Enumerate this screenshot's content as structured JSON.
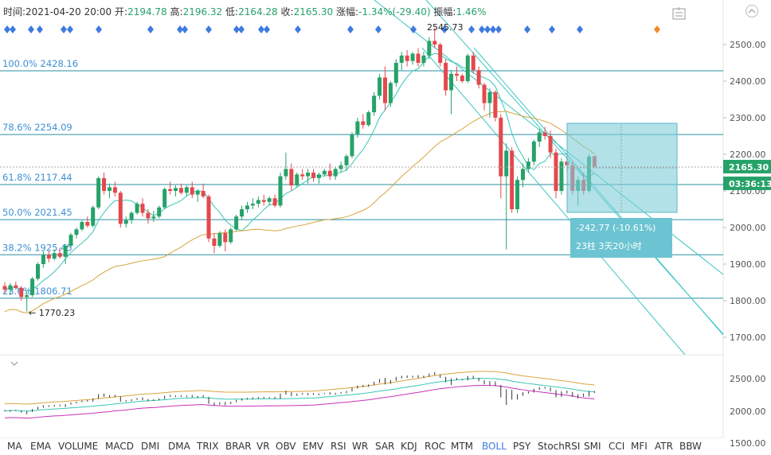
{
  "info": {
    "time_label": "时间:",
    "time_value": "2021-04-20 20:00",
    "open_label": "开:",
    "open_value": "2194.78",
    "high_label": "高:",
    "high_value": "2196.32",
    "low_label": "低:",
    "low_value": "2164.28",
    "close_label": "收:",
    "close_value": "2165.30",
    "change_label": "涨幅:",
    "change_value": "-1.34%(-29.40)",
    "amp_label": "振幅:",
    "amp_value": "1.46%"
  },
  "tools": [
    "chart-settings-icon",
    "collapse-up-icon"
  ],
  "fib_levels": [
    {
      "label": "100.0% 2428.16",
      "price": 2428.16
    },
    {
      "label": "78.6% 2254.09",
      "price": 2254.09
    },
    {
      "label": "61.8% 2117.44",
      "price": 2117.44
    },
    {
      "label": "50.0% 2021.45",
      "price": 2021.45
    },
    {
      "label": "38.2% 1925.45",
      "price": 1925.45
    },
    {
      "label": "23.6% 1806.71",
      "price": 1806.71
    }
  ],
  "annotations": {
    "high_marker": "2545.73",
    "low_marker": "← 1770.23"
  },
  "measure_box": {
    "line1": "-242.77 (-10.61%)",
    "line2": "23柱  3天20小时"
  },
  "price_axis": {
    "ticks": [
      "2500.00",
      "2400.00",
      "2300.00",
      "2200.00",
      "2100.00",
      "2000.00",
      "1900.00",
      "1800.00",
      "1700.00"
    ],
    "current_price": "2165.30",
    "countdown": "03:36:13"
  },
  "sub_axis": {
    "ticks": [
      "2500.00",
      "2000.00",
      "1500.00"
    ]
  },
  "indicator_tabs": [
    "MA",
    "EMA",
    "VOLUME",
    "MACD",
    "DMI",
    "DMA",
    "TRIX",
    "BRAR",
    "VR",
    "OBV",
    "EMV",
    "RSI",
    "WR",
    "SAR",
    "KDJ",
    "ROC",
    "MTM",
    "BOLL",
    "PSY",
    "StochRSI",
    "SMI",
    "CCI",
    "MFI",
    "ATR",
    "BBW"
  ],
  "active_tab": "BOLL",
  "colors": {
    "up": "#26a269",
    "down": "#e5484d",
    "fib_line": "#2a8fa3",
    "channel": "#3cc7c4",
    "ma_short": "#36c7b5",
    "ma_long": "#d8a43c",
    "boll_lower": "#c832b8",
    "measure_fill": "#7fcdd9",
    "tab_active": "#3d7be0",
    "marker_blue": "#3d7be0",
    "marker_orange": "#f28c28"
  },
  "chart_data": {
    "type": "candlestick",
    "symbol_interval": "4h",
    "y_axis_range": [
      1650,
      2560
    ],
    "sub_axis_range": [
      1500,
      2700
    ],
    "candles": [
      {
        "o": 1840,
        "h": 1850,
        "l": 1820,
        "c": 1830
      },
      {
        "o": 1830,
        "h": 1848,
        "l": 1815,
        "c": 1842
      },
      {
        "o": 1842,
        "h": 1852,
        "l": 1830,
        "c": 1835
      },
      {
        "o": 1835,
        "h": 1840,
        "l": 1800,
        "c": 1810
      },
      {
        "o": 1810,
        "h": 1822,
        "l": 1770,
        "c": 1815
      },
      {
        "o": 1815,
        "h": 1865,
        "l": 1810,
        "c": 1860
      },
      {
        "o": 1860,
        "h": 1905,
        "l": 1855,
        "c": 1900
      },
      {
        "o": 1900,
        "h": 1935,
        "l": 1890,
        "c": 1925
      },
      {
        "o": 1925,
        "h": 1935,
        "l": 1905,
        "c": 1915
      },
      {
        "o": 1915,
        "h": 1940,
        "l": 1910,
        "c": 1930
      },
      {
        "o": 1930,
        "h": 1945,
        "l": 1915,
        "c": 1920
      },
      {
        "o": 1920,
        "h": 1955,
        "l": 1900,
        "c": 1950
      },
      {
        "o": 1950,
        "h": 1985,
        "l": 1945,
        "c": 1980
      },
      {
        "o": 1980,
        "h": 2000,
        "l": 1970,
        "c": 1995
      },
      {
        "o": 1995,
        "h": 2020,
        "l": 1990,
        "c": 2015
      },
      {
        "o": 2015,
        "h": 2030,
        "l": 2000,
        "c": 2005
      },
      {
        "o": 2005,
        "h": 2060,
        "l": 2000,
        "c": 2055
      },
      {
        "o": 2055,
        "h": 2140,
        "l": 2050,
        "c": 2135
      },
      {
        "o": 2135,
        "h": 2150,
        "l": 2090,
        "c": 2100
      },
      {
        "o": 2100,
        "h": 2120,
        "l": 2080,
        "c": 2110
      },
      {
        "o": 2110,
        "h": 2125,
        "l": 2085,
        "c": 2095
      },
      {
        "o": 2095,
        "h": 2100,
        "l": 2000,
        "c": 2010
      },
      {
        "o": 2010,
        "h": 2030,
        "l": 2000,
        "c": 2020
      },
      {
        "o": 2020,
        "h": 2045,
        "l": 2010,
        "c": 2040
      },
      {
        "o": 2040,
        "h": 2070,
        "l": 2035,
        "c": 2065
      },
      {
        "o": 2065,
        "h": 2080,
        "l": 2030,
        "c": 2040
      },
      {
        "o": 2040,
        "h": 2050,
        "l": 2010,
        "c": 2025
      },
      {
        "o": 2025,
        "h": 2045,
        "l": 2015,
        "c": 2030
      },
      {
        "o": 2030,
        "h": 2060,
        "l": 2025,
        "c": 2055
      },
      {
        "o": 2055,
        "h": 2110,
        "l": 2050,
        "c": 2105
      },
      {
        "o": 2105,
        "h": 2125,
        "l": 2090,
        "c": 2100
      },
      {
        "o": 2100,
        "h": 2115,
        "l": 2085,
        "c": 2108
      },
      {
        "o": 2108,
        "h": 2120,
        "l": 2090,
        "c": 2095
      },
      {
        "o": 2095,
        "h": 2115,
        "l": 2085,
        "c": 2110
      },
      {
        "o": 2110,
        "h": 2125,
        "l": 2080,
        "c": 2090
      },
      {
        "o": 2090,
        "h": 2105,
        "l": 2070,
        "c": 2100
      },
      {
        "o": 2100,
        "h": 2120,
        "l": 2080,
        "c": 2085
      },
      {
        "o": 2085,
        "h": 2090,
        "l": 1960,
        "c": 1970
      },
      {
        "o": 1970,
        "h": 1985,
        "l": 1930,
        "c": 1950
      },
      {
        "o": 1950,
        "h": 1990,
        "l": 1945,
        "c": 1985
      },
      {
        "o": 1985,
        "h": 1995,
        "l": 1935,
        "c": 1960
      },
      {
        "o": 1960,
        "h": 2000,
        "l": 1955,
        "c": 1995
      },
      {
        "o": 1995,
        "h": 2035,
        "l": 1990,
        "c": 2030
      },
      {
        "o": 2030,
        "h": 2060,
        "l": 2020,
        "c": 2050
      },
      {
        "o": 2050,
        "h": 2070,
        "l": 2040,
        "c": 2060
      },
      {
        "o": 2060,
        "h": 2080,
        "l": 2050,
        "c": 2065
      },
      {
        "o": 2065,
        "h": 2085,
        "l": 2055,
        "c": 2075
      },
      {
        "o": 2075,
        "h": 2090,
        "l": 2060,
        "c": 2070
      },
      {
        "o": 2070,
        "h": 2085,
        "l": 2060,
        "c": 2080
      },
      {
        "o": 2080,
        "h": 2090,
        "l": 2055,
        "c": 2060
      },
      {
        "o": 2060,
        "h": 2150,
        "l": 2055,
        "c": 2140
      },
      {
        "o": 2140,
        "h": 2205,
        "l": 2130,
        "c": 2160
      },
      {
        "o": 2160,
        "h": 2175,
        "l": 2100,
        "c": 2115
      },
      {
        "o": 2115,
        "h": 2150,
        "l": 2110,
        "c": 2145
      },
      {
        "o": 2145,
        "h": 2160,
        "l": 2130,
        "c": 2140
      },
      {
        "o": 2140,
        "h": 2160,
        "l": 2120,
        "c": 2150
      },
      {
        "o": 2150,
        "h": 2160,
        "l": 2125,
        "c": 2135
      },
      {
        "o": 2135,
        "h": 2150,
        "l": 2120,
        "c": 2145
      },
      {
        "o": 2145,
        "h": 2160,
        "l": 2140,
        "c": 2155
      },
      {
        "o": 2155,
        "h": 2175,
        "l": 2130,
        "c": 2140
      },
      {
        "o": 2140,
        "h": 2165,
        "l": 2130,
        "c": 2160
      },
      {
        "o": 2160,
        "h": 2180,
        "l": 2150,
        "c": 2170
      },
      {
        "o": 2170,
        "h": 2200,
        "l": 2155,
        "c": 2195
      },
      {
        "o": 2195,
        "h": 2260,
        "l": 2190,
        "c": 2255
      },
      {
        "o": 2255,
        "h": 2300,
        "l": 2245,
        "c": 2290
      },
      {
        "o": 2290,
        "h": 2310,
        "l": 2270,
        "c": 2280
      },
      {
        "o": 2280,
        "h": 2320,
        "l": 2275,
        "c": 2315
      },
      {
        "o": 2315,
        "h": 2370,
        "l": 2305,
        "c": 2360
      },
      {
        "o": 2360,
        "h": 2420,
        "l": 2350,
        "c": 2410
      },
      {
        "o": 2410,
        "h": 2440,
        "l": 2320,
        "c": 2340
      },
      {
        "o": 2340,
        "h": 2400,
        "l": 2330,
        "c": 2395
      },
      {
        "o": 2395,
        "h": 2460,
        "l": 2385,
        "c": 2450
      },
      {
        "o": 2450,
        "h": 2480,
        "l": 2430,
        "c": 2470
      },
      {
        "o": 2470,
        "h": 2485,
        "l": 2440,
        "c": 2455
      },
      {
        "o": 2455,
        "h": 2480,
        "l": 2445,
        "c": 2475
      },
      {
        "o": 2475,
        "h": 2490,
        "l": 2440,
        "c": 2450
      },
      {
        "o": 2450,
        "h": 2480,
        "l": 2440,
        "c": 2470
      },
      {
        "o": 2470,
        "h": 2520,
        "l": 2460,
        "c": 2510
      },
      {
        "o": 2510,
        "h": 2546,
        "l": 2490,
        "c": 2500
      },
      {
        "o": 2500,
        "h": 2505,
        "l": 2440,
        "c": 2450
      },
      {
        "o": 2450,
        "h": 2460,
        "l": 2360,
        "c": 2375
      },
      {
        "o": 2375,
        "h": 2430,
        "l": 2310,
        "c": 2420
      },
      {
        "o": 2420,
        "h": 2440,
        "l": 2400,
        "c": 2415
      },
      {
        "o": 2415,
        "h": 2420,
        "l": 2395,
        "c": 2400
      },
      {
        "o": 2400,
        "h": 2475,
        "l": 2395,
        "c": 2470
      },
      {
        "o": 2470,
        "h": 2480,
        "l": 2420,
        "c": 2430
      },
      {
        "o": 2430,
        "h": 2440,
        "l": 2380,
        "c": 2390
      },
      {
        "o": 2390,
        "h": 2395,
        "l": 2320,
        "c": 2340
      },
      {
        "o": 2340,
        "h": 2380,
        "l": 2300,
        "c": 2370
      },
      {
        "o": 2370,
        "h": 2375,
        "l": 2290,
        "c": 2300
      },
      {
        "o": 2300,
        "h": 2310,
        "l": 2080,
        "c": 2140
      },
      {
        "o": 2140,
        "h": 2230,
        "l": 1940,
        "c": 2210
      },
      {
        "o": 2210,
        "h": 2220,
        "l": 2040,
        "c": 2050
      },
      {
        "o": 2050,
        "h": 2140,
        "l": 2040,
        "c": 2130
      },
      {
        "o": 2130,
        "h": 2175,
        "l": 2110,
        "c": 2160
      },
      {
        "o": 2160,
        "h": 2190,
        "l": 2150,
        "c": 2180
      },
      {
        "o": 2180,
        "h": 2240,
        "l": 2170,
        "c": 2235
      },
      {
        "o": 2235,
        "h": 2270,
        "l": 2220,
        "c": 2260
      },
      {
        "o": 2260,
        "h": 2275,
        "l": 2240,
        "c": 2250
      },
      {
        "o": 2250,
        "h": 2265,
        "l": 2190,
        "c": 2205
      },
      {
        "o": 2205,
        "h": 2215,
        "l": 2080,
        "c": 2100
      },
      {
        "o": 2100,
        "h": 2190,
        "l": 2090,
        "c": 2180
      },
      {
        "o": 2180,
        "h": 2205,
        "l": 2150,
        "c": 2170
      },
      {
        "o": 2170,
        "h": 2180,
        "l": 2090,
        "c": 2100
      },
      {
        "o": 2100,
        "h": 2140,
        "l": 2060,
        "c": 2130
      },
      {
        "o": 2130,
        "h": 2150,
        "l": 2090,
        "c": 2100
      },
      {
        "o": 2100,
        "h": 2200,
        "l": 2095,
        "c": 2194
      },
      {
        "o": 2194.78,
        "h": 2196.32,
        "l": 2164.28,
        "c": 2165.3
      }
    ]
  }
}
